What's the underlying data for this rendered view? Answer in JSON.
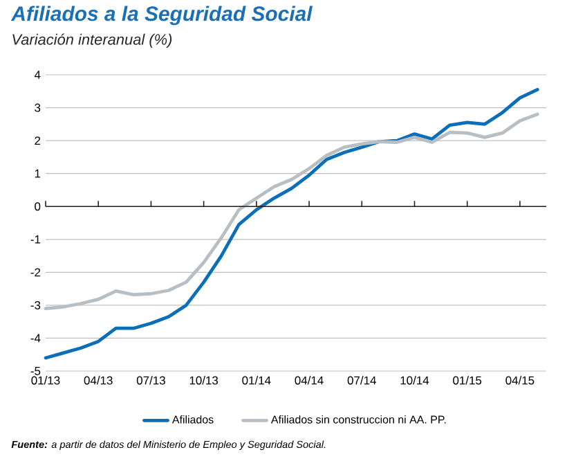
{
  "chart_data": {
    "type": "line",
    "title": "Afiliados a la Seguridad Social",
    "subtitle": "Variación interanual (%)",
    "categories": [
      "01/13",
      null,
      null,
      "04/13",
      null,
      null,
      "07/13",
      null,
      null,
      "10/13",
      null,
      null,
      "01/14",
      null,
      null,
      "04/14",
      null,
      null,
      "07/14",
      null,
      null,
      "10/14",
      null,
      null,
      "01/15",
      null,
      null,
      "04/15",
      null
    ],
    "series": [
      {
        "name": "Afiliados",
        "color": "#0a6eb8",
        "values": [
          -4.6,
          -4.45,
          -4.3,
          -4.1,
          -3.7,
          -3.7,
          -3.55,
          -3.35,
          -3.0,
          -2.3,
          -1.5,
          -0.55,
          -0.1,
          0.25,
          0.55,
          0.95,
          1.43,
          1.64,
          1.8,
          1.97,
          2.0,
          2.2,
          2.05,
          2.47,
          2.55,
          2.5,
          2.85,
          3.3,
          3.55
        ]
      },
      {
        "name": "Afiliados sin construccion ni AA. PP.",
        "color": "#b8bfc4",
        "values": [
          -3.1,
          -3.05,
          -2.95,
          -2.82,
          -2.57,
          -2.68,
          -2.65,
          -2.55,
          -2.3,
          -1.7,
          -0.95,
          -0.1,
          0.25,
          0.6,
          0.82,
          1.15,
          1.55,
          1.8,
          1.9,
          1.97,
          1.95,
          2.1,
          1.95,
          2.25,
          2.23,
          2.1,
          2.23,
          2.6,
          2.8
        ]
      }
    ],
    "ylim": [
      -5,
      4
    ],
    "yticks": [
      -5,
      -4,
      -3,
      -2,
      -1,
      0,
      1,
      2,
      3,
      4
    ],
    "grid": "y",
    "legend": "bottom",
    "ref_lines": [
      {
        "axis": "y",
        "value": 0,
        "color": "#231f20"
      }
    ],
    "annotations": [
      "**Fuente:** a partir de datos del Ministerio de Empleo y Seguridad Social."
    ]
  }
}
